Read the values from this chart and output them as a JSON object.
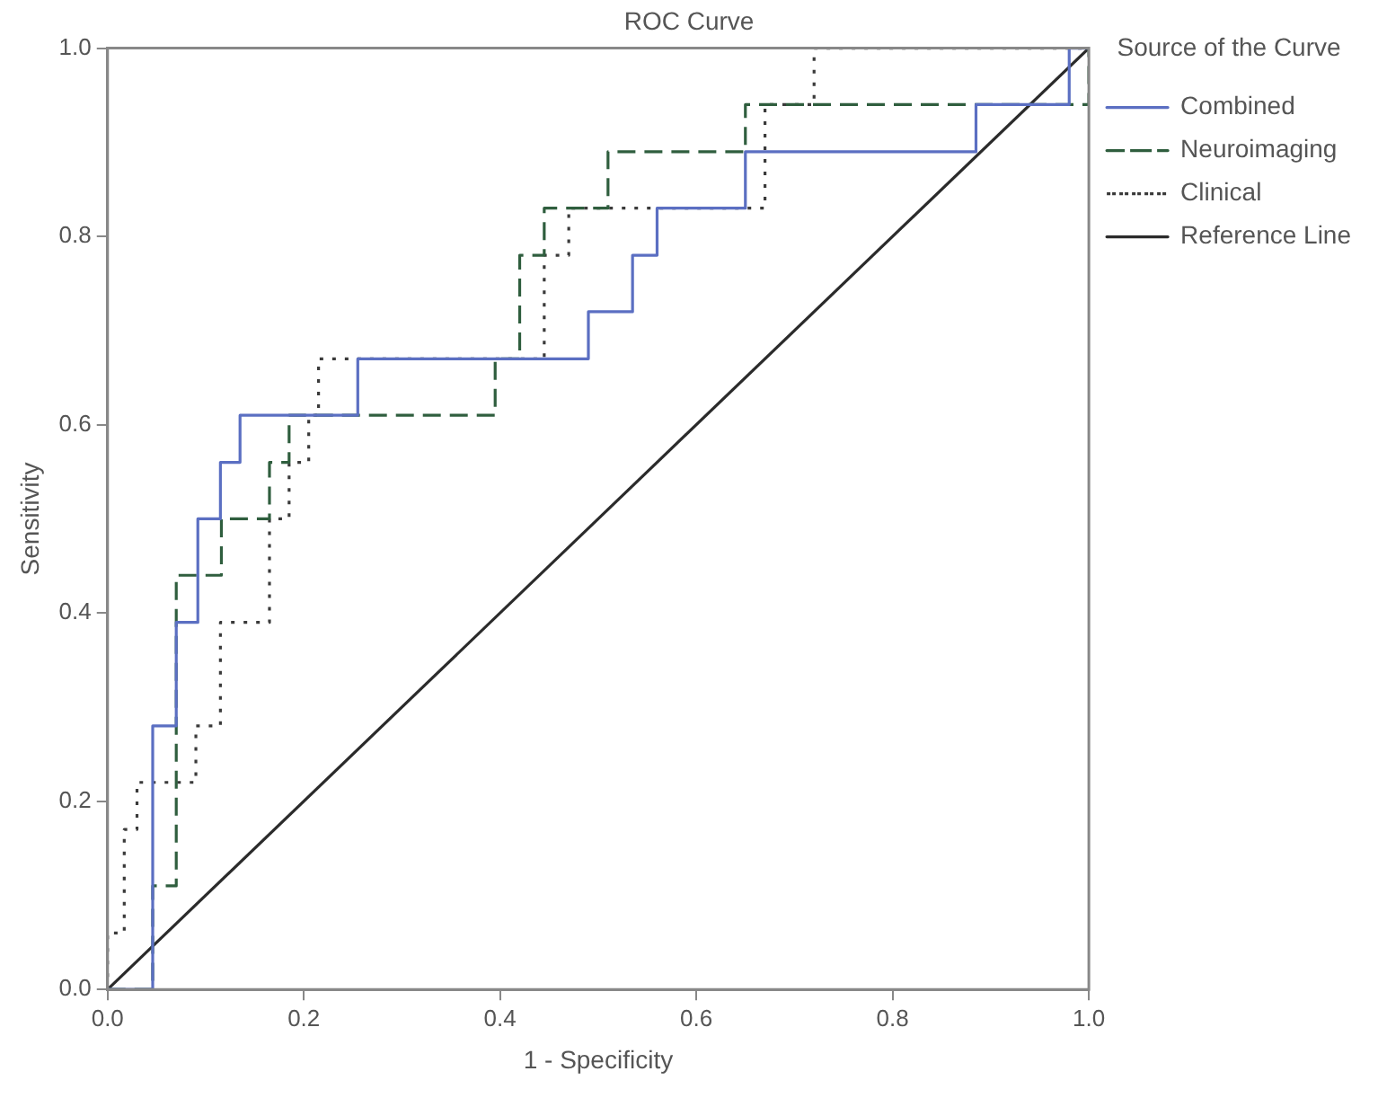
{
  "chart_data": {
    "type": "step",
    "title": "ROC Curve",
    "xlabel": "1 - Specificity",
    "ylabel": "Sensitivity",
    "legend_title": "Source of the Curve",
    "legend": "right",
    "grid": false,
    "marker": "none",
    "xlim": [
      0,
      1
    ],
    "ylim": [
      0,
      1
    ],
    "xticks": [
      {
        "value": 0,
        "label": "0.0"
      },
      {
        "value": 0.2,
        "label": "0.2"
      },
      {
        "value": 0.4,
        "label": "0.4"
      },
      {
        "value": 0.6,
        "label": "0.6"
      },
      {
        "value": 0.8,
        "label": "0.8"
      },
      {
        "value": 1,
        "label": "1.0"
      }
    ],
    "yticks": [
      {
        "value": 0,
        "label": "0.0"
      },
      {
        "value": 0.2,
        "label": "0.2"
      },
      {
        "value": 0.4,
        "label": "0.4"
      },
      {
        "value": 0.6,
        "label": "0.6"
      },
      {
        "value": 0.8,
        "label": "0.8"
      },
      {
        "value": 1,
        "label": "1.0"
      }
    ],
    "series": [
      {
        "name": "Combined",
        "color": "#5b6fc2",
        "line_style": "solid",
        "x": [
          0,
          0.046,
          0.046,
          0.07,
          0.07,
          0.092,
          0.092,
          0.115,
          0.115,
          0.135,
          0.135,
          0.255,
          0.255,
          0.49,
          0.49,
          0.535,
          0.535,
          0.56,
          0.56,
          0.65,
          0.65,
          0.885,
          0.885,
          0.98,
          0.98,
          1
        ],
        "values": [
          0,
          0,
          0.28,
          0.28,
          0.39,
          0.39,
          0.5,
          0.5,
          0.56,
          0.56,
          0.61,
          0.61,
          0.67,
          0.67,
          0.72,
          0.72,
          0.78,
          0.78,
          0.83,
          0.83,
          0.89,
          0.89,
          0.94,
          0.94,
          1,
          1
        ]
      },
      {
        "name": "Neuroimaging",
        "color": "#2f5e3e",
        "line_style": "dashed",
        "x": [
          0,
          0.046,
          0.046,
          0.07,
          0.07,
          0.116,
          0.116,
          0.165,
          0.165,
          0.185,
          0.185,
          0.395,
          0.395,
          0.42,
          0.42,
          0.445,
          0.445,
          0.51,
          0.51,
          0.65,
          0.65,
          1,
          1
        ],
        "values": [
          0,
          0,
          0.11,
          0.11,
          0.44,
          0.44,
          0.5,
          0.5,
          0.56,
          0.56,
          0.61,
          0.61,
          0.67,
          0.67,
          0.78,
          0.78,
          0.83,
          0.83,
          0.89,
          0.89,
          0.94,
          0.94,
          1
        ]
      },
      {
        "name": "Clinical",
        "color": "#3a3a3a",
        "line_style": "dotted",
        "x": [
          0,
          0,
          0.017,
          0.017,
          0.03,
          0.03,
          0.09,
          0.09,
          0.115,
          0.115,
          0.165,
          0.165,
          0.185,
          0.185,
          0.205,
          0.205,
          0.215,
          0.215,
          0.445,
          0.445,
          0.47,
          0.47,
          0.67,
          0.67,
          0.72,
          0.72,
          1
        ],
        "values": [
          0,
          0.06,
          0.06,
          0.17,
          0.17,
          0.22,
          0.22,
          0.28,
          0.28,
          0.39,
          0.39,
          0.5,
          0.5,
          0.56,
          0.56,
          0.61,
          0.61,
          0.67,
          0.67,
          0.78,
          0.78,
          0.83,
          0.83,
          0.94,
          0.94,
          1,
          1
        ]
      },
      {
        "name": "Reference Line",
        "color": "#2b2b2b",
        "line_style": "solid",
        "type": "line",
        "x": [
          0,
          1
        ],
        "values": [
          0,
          1
        ]
      }
    ]
  }
}
